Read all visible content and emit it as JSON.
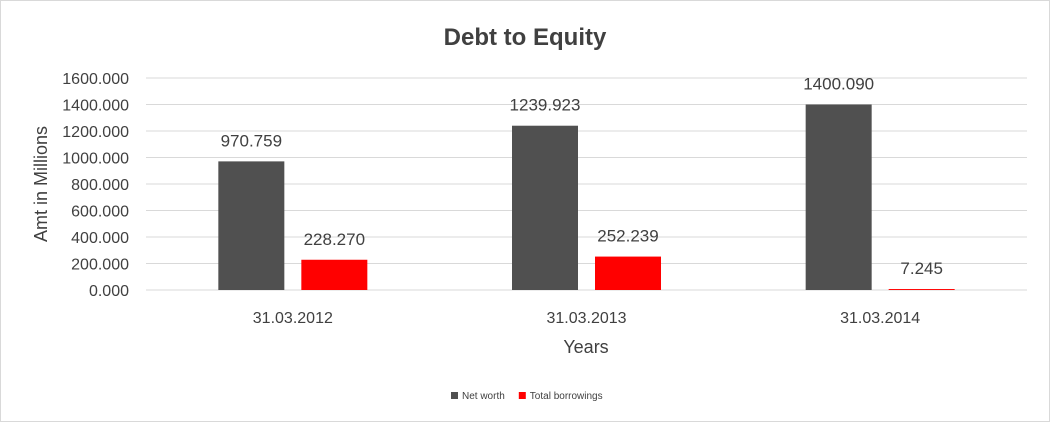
{
  "chart_data": {
    "type": "bar",
    "title": "Debt to Equity",
    "xlabel": "Years",
    "ylabel": "Amt in Millions",
    "categories": [
      "31.03.2012",
      "31.03.2013",
      "31.03.2014"
    ],
    "series": [
      {
        "name": "Net worth",
        "color": "#505050",
        "values": [
          970.759,
          1239.923,
          1400.09
        ],
        "labels": [
          "970.759",
          "1239.923",
          "1400.090"
        ]
      },
      {
        "name": "Total borrowings",
        "color": "#ff0000",
        "values": [
          228.27,
          252.239,
          7.245
        ],
        "labels": [
          "228.270",
          "252.239",
          "7.245"
        ]
      }
    ],
    "ylim": [
      0,
      1600
    ],
    "yticks": [
      "0.000",
      "200.000",
      "400.000",
      "600.000",
      "800.000",
      "1000.000",
      "1200.000",
      "1400.000",
      "1600.000"
    ],
    "grid": true,
    "legend": "bottom"
  }
}
